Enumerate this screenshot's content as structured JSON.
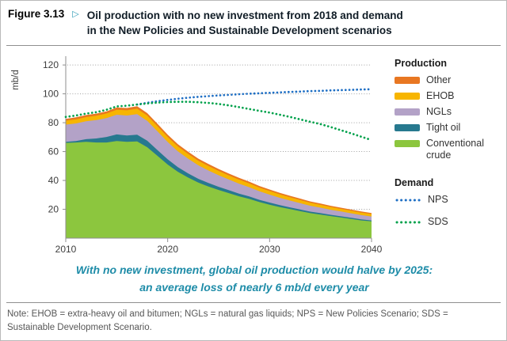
{
  "figure": {
    "label": "Figure 3.13",
    "marker": "▷",
    "title_line1": "Oil production with no new investment from 2018 and demand",
    "title_line2": "in the New Policies and Sustainable Development scenarios"
  },
  "caption": {
    "line1": "With no new investment, global oil production would halve by 2025:",
    "line2": "an average loss of nearly 6 mb/d every year"
  },
  "note": {
    "text": "Note: EHOB = extra-heavy oil and bitumen; NGLs = natural gas liquids; NPS = New Policies Scenario; SDS = Sustainable Development Scenario."
  },
  "chart_data": {
    "type": "area",
    "stacked": true,
    "ylabel": "mb/d",
    "ylim": [
      0,
      125
    ],
    "yticks": [
      20,
      40,
      60,
      80,
      100,
      120
    ],
    "xticks": [
      2010,
      2020,
      2030,
      2040
    ],
    "grid": "dotted-horizontal",
    "legend_position": "right",
    "x": [
      2010,
      2011,
      2012,
      2013,
      2014,
      2015,
      2016,
      2017,
      2018,
      2019,
      2020,
      2021,
      2022,
      2023,
      2024,
      2025,
      2026,
      2027,
      2028,
      2029,
      2030,
      2031,
      2032,
      2033,
      2034,
      2035,
      2036,
      2037,
      2038,
      2039,
      2040
    ],
    "series": [
      {
        "name": "Conventional crude",
        "type": "area",
        "color": "#8cc63e",
        "values": [
          66.0,
          66.3,
          66.8,
          66.3,
          66.3,
          67.3,
          66.8,
          67.0,
          63.0,
          57.0,
          51.0,
          46.0,
          42.0,
          38.5,
          35.8,
          33.4,
          31.2,
          29.0,
          27.2,
          25.0,
          23.2,
          21.5,
          20.1,
          18.7,
          17.3,
          16.3,
          15.3,
          14.3,
          13.3,
          12.3,
          11.6
        ]
      },
      {
        "name": "Tight oil",
        "type": "area",
        "color": "#27798f",
        "values": [
          0.7,
          1.0,
          1.8,
          2.8,
          3.8,
          4.6,
          4.3,
          4.7,
          4.5,
          4.0,
          3.6,
          3.2,
          2.9,
          2.6,
          2.4,
          2.2,
          2.0,
          1.85,
          1.7,
          1.55,
          1.45,
          1.35,
          1.25,
          1.15,
          1.05,
          1.0,
          0.9,
          0.85,
          0.8,
          0.75,
          0.7
        ]
      },
      {
        "name": "NGLs",
        "type": "area",
        "color": "#b3a2c7",
        "values": [
          12.0,
          12.2,
          12.4,
          12.7,
          13.1,
          13.6,
          13.9,
          14.2,
          13.8,
          13.0,
          12.0,
          11.0,
          10.2,
          9.4,
          8.7,
          8.0,
          7.4,
          6.9,
          6.4,
          5.9,
          5.5,
          5.1,
          4.7,
          4.4,
          4.1,
          3.8,
          3.5,
          3.3,
          3.1,
          2.9,
          2.7
        ]
      },
      {
        "name": "EHOB",
        "type": "area",
        "color": "#f7b500",
        "values": [
          2.7,
          2.8,
          2.9,
          3.0,
          3.2,
          3.4,
          3.6,
          3.8,
          3.7,
          3.6,
          3.5,
          3.4,
          3.3,
          3.2,
          3.1,
          3.0,
          2.9,
          2.8,
          2.7,
          2.6,
          2.5,
          2.4,
          2.3,
          2.2,
          2.1,
          2.0,
          1.9,
          1.85,
          1.8,
          1.75,
          1.7
        ]
      },
      {
        "name": "Other",
        "type": "area",
        "color": "#e87722",
        "values": [
          1.3,
          1.4,
          1.4,
          1.5,
          1.5,
          1.6,
          1.6,
          1.7,
          1.65,
          1.6,
          1.55,
          1.5,
          1.45,
          1.4,
          1.35,
          1.3,
          1.25,
          1.2,
          1.15,
          1.1,
          1.05,
          1.0,
          0.97,
          0.94,
          0.91,
          0.88,
          0.85,
          0.82,
          0.8,
          0.78,
          0.75
        ]
      },
      {
        "name": "NPS",
        "type": "dotted-line",
        "color": "#1f6fc4",
        "values": [
          null,
          null,
          null,
          null,
          null,
          null,
          null,
          92.6,
          93.8,
          94.9,
          95.8,
          96.6,
          97.3,
          97.9,
          98.4,
          98.9,
          99.3,
          99.7,
          100.1,
          100.4,
          100.7,
          101.0,
          101.3,
          101.6,
          101.9,
          102.1,
          102.4,
          102.6,
          102.8,
          103.0,
          103.2
        ]
      },
      {
        "name": "SDS",
        "type": "dotted-line",
        "color": "#00a14b",
        "values": [
          84.0,
          85.0,
          86.3,
          87.3,
          89.0,
          91.3,
          91.8,
          92.6,
          93.3,
          93.9,
          94.3,
          94.5,
          94.5,
          94.2,
          93.7,
          93.0,
          92.0,
          90.8,
          89.5,
          88.2,
          87.0,
          85.5,
          84.0,
          82.3,
          80.6,
          79.0,
          77.0,
          74.8,
          72.6,
          70.3,
          68.0
        ]
      }
    ],
    "legend": {
      "production_title": "Production",
      "production_items": [
        {
          "label": "Other",
          "color": "#e87722"
        },
        {
          "label": "EHOB",
          "color": "#f7b500"
        },
        {
          "label": "NGLs",
          "color": "#b3a2c7"
        },
        {
          "label": "Tight oil",
          "color": "#27798f"
        },
        {
          "label": "Conventional crude",
          "color": "#8cc63e"
        }
      ],
      "demand_title": "Demand",
      "demand_items": [
        {
          "label": "NPS",
          "color": "#1f6fc4"
        },
        {
          "label": "SDS",
          "color": "#00a14b"
        }
      ]
    }
  }
}
